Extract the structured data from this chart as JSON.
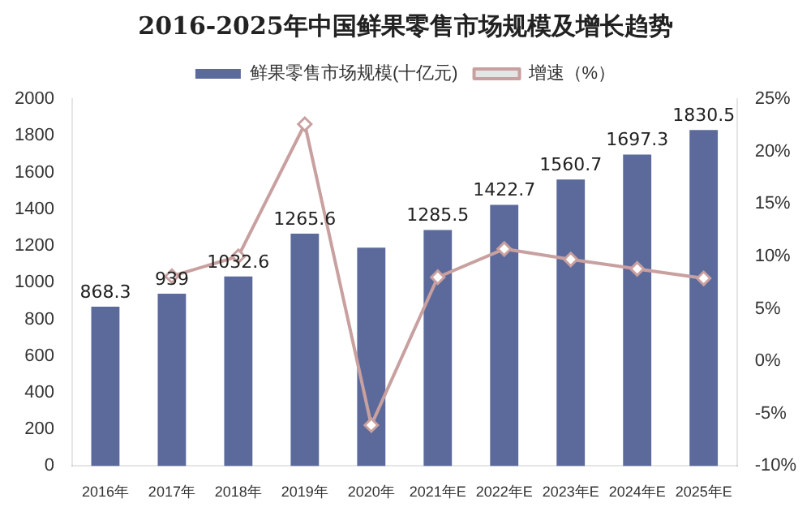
{
  "chart_data": {
    "type": "bar",
    "title": "2016-2025年中国鲜果零售市场规模及增长趋势",
    "categories": [
      "2016年",
      "2017年",
      "2018年",
      "2019年",
      "2020年",
      "2021年E",
      "2022年E",
      "2023年E",
      "2024年E",
      "2025年E"
    ],
    "series": [
      {
        "name": "鲜果零售市场规模(十亿元)",
        "color": "#5b6a9a",
        "values": [
          868.3,
          939,
          1032.6,
          1265.6,
          1190,
          1285.5,
          1422.7,
          1560.7,
          1697.3,
          1830.5
        ],
        "value_labels": [
          "868.3",
          "939",
          "1032.6",
          "1265.6",
          null,
          "1285.5",
          "1422.7",
          "1560.7",
          "1697.3",
          "1830.5"
        ]
      },
      {
        "name": "增速（%）",
        "type": "line",
        "axis": "y2",
        "color": "#c9a0a0",
        "marker": "diamond",
        "values": [
          null,
          8.1,
          10.0,
          22.6,
          -6.1,
          8.0,
          10.7,
          9.7,
          8.8,
          7.9
        ]
      }
    ],
    "ylim": [
      0,
      2000
    ],
    "yticks": [
      0,
      200,
      400,
      600,
      800,
      1000,
      1200,
      1400,
      1600,
      1800,
      2000
    ],
    "y2lim": [
      -10,
      25
    ],
    "y2ticks": [
      {
        "value": -10,
        "label": "-10%"
      },
      {
        "value": -5,
        "label": "-5%"
      },
      {
        "value": 0,
        "label": "0%"
      },
      {
        "value": 5,
        "label": "5%"
      },
      {
        "value": 10,
        "label": "10%"
      },
      {
        "value": 15,
        "label": "15%"
      },
      {
        "value": 20,
        "label": "20%"
      },
      {
        "value": 25,
        "label": "25%"
      }
    ],
    "grid": false,
    "legend": "top"
  }
}
